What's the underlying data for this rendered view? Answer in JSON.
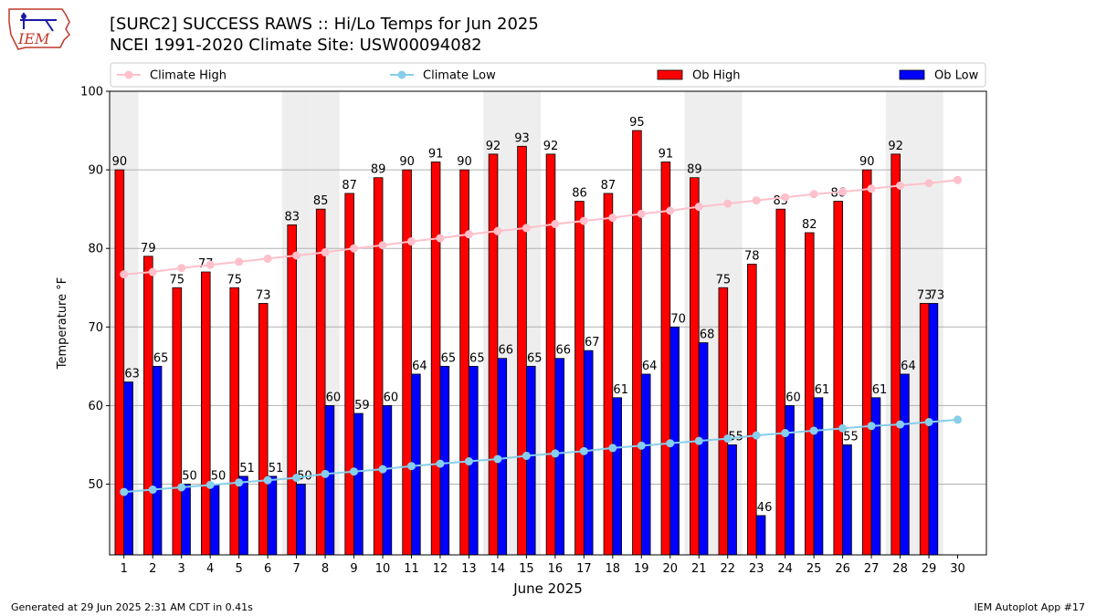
{
  "header": {
    "title": "[SURC2] SUCCESS RAWS :: Hi/Lo Temps for Jun 2025",
    "subtitle": "NCEI 1991-2020 Climate Site: USW00094082",
    "logo_text": "IEM"
  },
  "footer": {
    "left": "Generated at 29 Jun 2025 2:31 AM CDT in 0.41s",
    "right": "IEM Autoplot App #17"
  },
  "chart_data": {
    "type": "bar",
    "xlabel": "June 2025",
    "ylabel": "Temperature °F",
    "ylim": [
      41,
      100
    ],
    "yticks": [
      50,
      60,
      70,
      80,
      90,
      100
    ],
    "grid": true,
    "legend_placement": "top",
    "categories": [
      "1",
      "2",
      "3",
      "4",
      "5",
      "6",
      "7",
      "8",
      "9",
      "10",
      "11",
      "12",
      "13",
      "14",
      "15",
      "16",
      "17",
      "18",
      "19",
      "20",
      "21",
      "22",
      "23",
      "24",
      "25",
      "26",
      "27",
      "28",
      "29",
      "30"
    ],
    "shaded_weekends": [
      "1",
      "7",
      "8",
      "14",
      "15",
      "21",
      "22",
      "28",
      "29"
    ],
    "series": [
      {
        "name": "Climate High",
        "kind": "line",
        "color": "#ffc0cb",
        "values": [
          76.7,
          77.0,
          77.5,
          77.9,
          78.3,
          78.7,
          79.1,
          79.5,
          80.0,
          80.4,
          80.9,
          81.3,
          81.8,
          82.2,
          82.6,
          83.1,
          83.5,
          83.9,
          84.4,
          84.8,
          85.3,
          85.7,
          86.1,
          86.5,
          86.9,
          87.2,
          87.6,
          88.0,
          88.3,
          88.7
        ]
      },
      {
        "name": "Climate Low",
        "kind": "line",
        "color": "#87ceeb",
        "values": [
          49.0,
          49.3,
          49.6,
          49.9,
          50.2,
          50.5,
          50.8,
          51.3,
          51.6,
          51.9,
          52.3,
          52.6,
          52.9,
          53.2,
          53.6,
          53.9,
          54.2,
          54.6,
          54.9,
          55.2,
          55.5,
          55.8,
          56.2,
          56.5,
          56.8,
          57.1,
          57.4,
          57.6,
          57.9,
          58.2
        ]
      },
      {
        "name": "Ob High",
        "kind": "bar",
        "color": "#ff0000",
        "values": [
          90,
          79,
          75,
          77,
          75,
          73,
          83,
          85,
          87,
          89,
          90,
          91,
          90,
          92,
          93,
          92,
          86,
          87,
          95,
          91,
          89,
          75,
          78,
          85,
          82,
          86,
          90,
          92,
          73,
          null
        ]
      },
      {
        "name": "Ob Low",
        "kind": "bar",
        "color": "#0000ff",
        "values": [
          63,
          65,
          50,
          50,
          51,
          51,
          50,
          60,
          59,
          60,
          64,
          65,
          65,
          66,
          65,
          66,
          67,
          61,
          64,
          70,
          68,
          55,
          46,
          60,
          61,
          55,
          61,
          64,
          73,
          null
        ]
      }
    ]
  }
}
